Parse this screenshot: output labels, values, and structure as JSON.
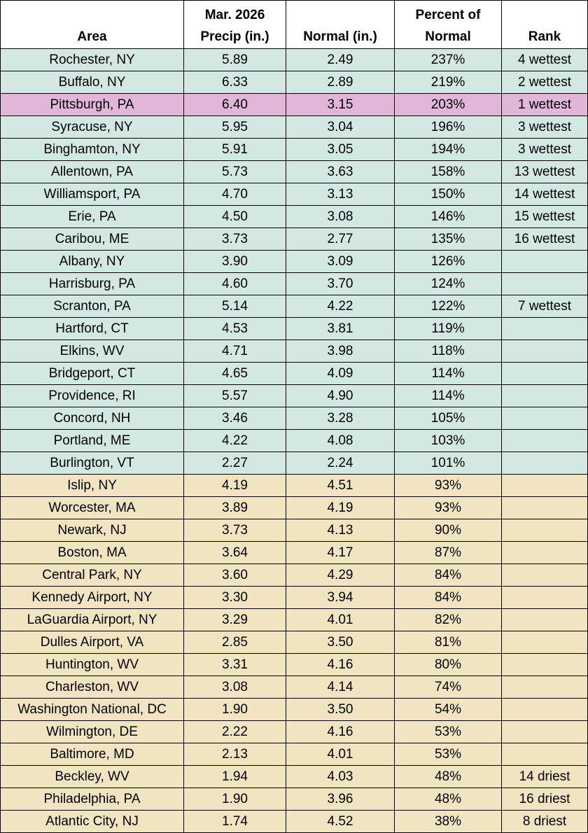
{
  "table": {
    "header": [
      "Area",
      "Mar. 2026\nPrecip (in.)",
      "Normal (in.)",
      "Percent of\nNormal",
      "Rank"
    ],
    "rows": [
      [
        "Rochester, NY",
        "5.89",
        "2.49",
        "237%",
        "4 wettest"
      ],
      [
        "Buffalo, NY",
        "6.33",
        "2.89",
        "219%",
        "2 wettest"
      ],
      [
        "Pittsburgh, PA",
        "6.40",
        "3.15",
        "203%",
        "1 wettest"
      ],
      [
        "Syracuse, NY",
        "5.95",
        "3.04",
        "196%",
        "3 wettest"
      ],
      [
        "Binghamton, NY",
        "5.91",
        "3.05",
        "194%",
        "3 wettest"
      ],
      [
        "Allentown, PA",
        "5.73",
        "3.63",
        "158%",
        "13 wettest"
      ],
      [
        "Williamsport, PA",
        "4.70",
        "3.13",
        "150%",
        "14 wettest"
      ],
      [
        "Erie, PA",
        "4.50",
        "3.08",
        "146%",
        "15 wettest"
      ],
      [
        "Caribou, ME",
        "3.73",
        "2.77",
        "135%",
        "16 wettest"
      ],
      [
        "Albany, NY",
        "3.90",
        "3.09",
        "126%",
        null
      ],
      [
        "Harrisburg, PA",
        "4.60",
        "3.70",
        "124%",
        null
      ],
      [
        "Scranton, PA",
        "5.14",
        "4.22",
        "122%",
        "7 wettest"
      ],
      [
        "Hartford, CT",
        "4.53",
        "3.81",
        "119%",
        null
      ],
      [
        "Elkins, WV",
        "4.71",
        "3.98",
        "118%",
        null
      ],
      [
        "Bridgeport, CT",
        "4.65",
        "4.09",
        "114%",
        null
      ],
      [
        "Providence, RI",
        "5.57",
        "4.90",
        "114%",
        null
      ],
      [
        "Concord, NH",
        "3.46",
        "3.28",
        "105%",
        null
      ],
      [
        "Portland, ME",
        "4.22",
        "4.08",
        "103%",
        null
      ],
      [
        "Burlington, VT",
        "2.27",
        "2.24",
        "101%",
        null
      ],
      [
        "Islip, NY",
        "4.19",
        "4.51",
        "93%",
        null
      ],
      [
        "Worcester, MA",
        "3.89",
        "4.19",
        "93%",
        null
      ],
      [
        "Newark, NJ",
        "3.73",
        "4.13",
        "90%",
        null
      ],
      [
        "Boston, MA",
        "3.64",
        "4.17",
        "87%",
        null
      ],
      [
        "Central Park, NY",
        "3.60",
        "4.29",
        "84%",
        null
      ],
      [
        "Kennedy Airport, NY",
        "3.30",
        "3.94",
        "84%",
        null
      ],
      [
        "LaGuardia Airport, NY",
        "3.29",
        "4.01",
        "82%",
        null
      ],
      [
        "Dulles Airport, VA",
        "2.85",
        "3.50",
        "81%",
        null
      ],
      [
        "Huntington, WV",
        "3.31",
        "4.16",
        "80%",
        null
      ],
      [
        "Charleston, WV",
        "3.08",
        "4.14",
        "74%",
        null
      ],
      [
        "Washington National, DC",
        "1.90",
        "3.50",
        "54%",
        null
      ],
      [
        "Wilmington, DE",
        "2.22",
        "4.16",
        "53%",
        null
      ],
      [
        "Baltimore, MD",
        "2.13",
        "4.01",
        "53%",
        null
      ],
      [
        "Beckley, WV",
        "1.94",
        "4.03",
        "48%",
        "14 driest"
      ],
      [
        "Philadelphia, PA",
        "1.90",
        "3.96",
        "48%",
        "16 driest"
      ],
      [
        "Atlantic City, NJ",
        "1.74",
        "4.52",
        "38%",
        "8 driest"
      ]
    ],
    "row_colors": [
      "#d3e8e3",
      "#d3e8e3",
      "#e2b6d8",
      "#d3e8e3",
      "#d3e8e3",
      "#d3e8e3",
      "#d3e8e3",
      "#d3e8e3",
      "#d3e8e3",
      "#d3e8e3",
      "#d3e8e3",
      "#d3e8e3",
      "#d3e8e3",
      "#d3e8e3",
      "#d3e8e3",
      "#d3e8e3",
      "#d3e8e3",
      "#d3e8e3",
      "#d3e8e3",
      "#f1e4c1",
      "#f1e4c1",
      "#f1e4c1",
      "#f1e4c1",
      "#f1e4c1",
      "#f1e4c1",
      "#f1e4c1",
      "#f1e4c1",
      "#f1e4c1",
      "#f1e4c1",
      "#f1e4c1",
      "#f1e4c1",
      "#f1e4c1",
      "#f1e4c1",
      "#f1e4c1",
      "#f1e4c1"
    ]
  }
}
